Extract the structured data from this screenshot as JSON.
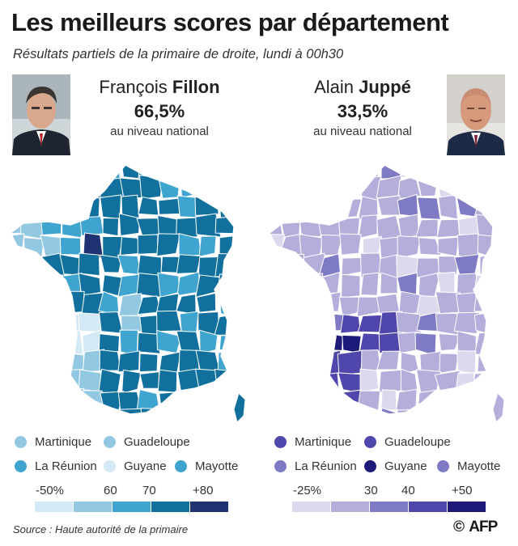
{
  "title": "Les meilleurs scores par département",
  "subtitle": "Résultats partiels de la primaire de droite, lundi à 00h30",
  "candidates": [
    {
      "first_name": "François",
      "last_name": "Fillon",
      "pct": "66,5%",
      "national": "au niveau national",
      "colors": [
        "#d3e9f5",
        "#93c8e3",
        "#3fa4cf",
        "#12709e",
        "#1f3272"
      ]
    },
    {
      "first_name": "Alain",
      "last_name": "Juppé",
      "pct": "33,5%",
      "national": "au niveau national",
      "colors": [
        "#dcd9ee",
        "#b4aedb",
        "#7e7bc4",
        "#4f47ac",
        "#1e1a7a"
      ]
    }
  ],
  "overseas": [
    {
      "label": "Martinique",
      "fillon_color": "#93c8e3",
      "juppe_color": "#4f47ac"
    },
    {
      "label": "Guadeloupe",
      "fillon_color": "#93c8e3",
      "juppe_color": "#4f47ac"
    },
    {
      "label": "La Réunion",
      "fillon_color": "#3fa4cf",
      "juppe_color": "#7e7bc4"
    },
    {
      "label": "Guyane",
      "fillon_color": "#d3e9f5",
      "juppe_color": "#1e1a7a"
    },
    {
      "label": "Mayotte",
      "fillon_color": "#3fa4cf",
      "juppe_color": "#7e7bc4"
    }
  ],
  "scales": {
    "fillon": [
      "-50%",
      "60",
      "70",
      "+80"
    ],
    "juppe": [
      "-25%",
      "30",
      "40",
      "+50"
    ]
  },
  "source": "Source : Haute autorité de la primaire",
  "logo": "AFP",
  "copyright": "©"
}
